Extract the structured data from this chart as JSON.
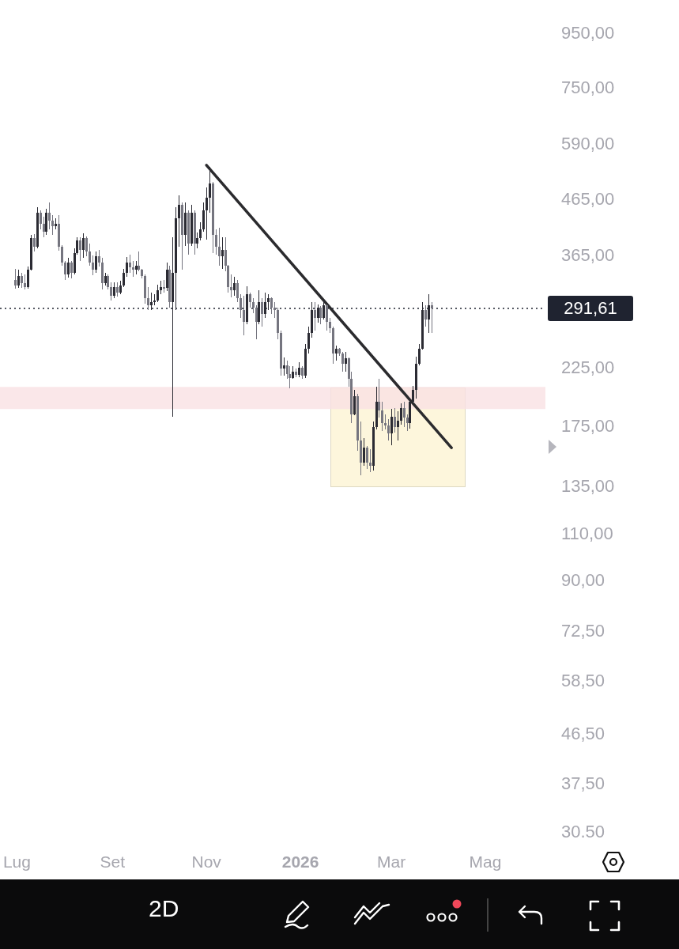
{
  "chart_data": {
    "type": "candlestick",
    "log": "y",
    "colors": [
      "#75757f",
      "#2b2b33",
      "#75757f",
      "#75757f",
      "#2b2b33",
      "#2b2b33",
      "#75757f",
      "#2b2b33",
      "#75757f",
      "#75757f",
      "#2b2b33",
      "#75757f",
      "#75757f",
      "#2b2b33",
      "#75757f",
      "#75757f",
      "#75757f",
      "#2b2b33",
      "#75757f",
      "#2b2b33",
      "#2b2b33",
      "#75757f",
      "#2b2b33",
      "#75757f",
      "#75757f",
      "#75757f",
      "#2b2b33",
      "#75757f",
      "#75757f",
      "#2b2b33",
      "#75757f",
      "#75757f",
      "#2b2b33",
      "#75757f",
      "#2b2b33",
      "#2b2b33",
      "#2b2b33",
      "#75757f",
      "#75757f",
      "#2b2b33",
      "#75757f",
      "#75757f",
      "#75757f",
      "#75757f",
      "#2b2b33",
      "#2b2b33",
      "#2b2b33",
      "#2b2b33",
      "#75757f",
      "#2b2b33",
      "#75757f",
      "#2b2b33",
      "#2b2b33",
      "#2b2b33",
      "#75757f",
      "#2b2b33",
      "#75757f",
      "#2b2b33",
      "#75757f",
      "#2b2b33",
      "#2b2b33",
      "#2b2b33",
      "#2b2b33",
      "#2b2b33",
      "#75757f",
      "#75757f",
      "#75757f",
      "#2b2b33",
      "#75757f",
      "#75757f",
      "#75757f",
      "#2b2b33",
      "#75757f",
      "#75757f",
      "#75757f",
      "#2b2b33",
      "#75757f",
      "#75757f",
      "#75757f",
      "#2b2b33",
      "#75757f",
      "#2b2b33",
      "#2b2b33",
      "#75757f",
      "#75757f",
      "#75757f",
      "#75757f",
      "#2b2b33",
      "#75757f",
      "#75757f",
      "#2b2b33",
      "#75757f",
      "#2b2b33",
      "#75757f",
      "#2b2b33",
      "#2b2b33",
      "#2b2b33",
      "#75757f",
      "#2b2b33",
      "#75757f",
      "#2b2b33",
      "#75757f",
      "#75757f",
      "#75757f",
      "#2b2b33",
      "#75757f",
      "#75757f",
      "#2b2b33",
      "#75757f",
      "#75757f",
      "#2b2b33",
      "#75757f",
      "#75757f",
      "#2b2b33",
      "#75757f",
      "#75757f",
      "#2b2b33",
      "#2b2b33",
      "#75757f",
      "#75757f",
      "#75757f",
      "#75757f",
      "#2b2b33",
      "#75757f",
      "#2b2b33",
      "#2b2b33",
      "#75757f",
      "#75757f",
      "#2b2b33",
      "#2b2b33",
      "#2b2b33",
      "#2b2b33",
      "#2b2b33",
      "#75757f",
      "#2b2b33",
      "#75757f"
    ],
    "grid": false,
    "legend": false,
    "xlim": [
      "2025-06-20",
      "2026-06-09"
    ],
    "ylim": [
      30.5,
      950
    ],
    "xticks": [
      {
        "value": "2025-07-01",
        "label": "Lug"
      },
      {
        "value": "2025-09-01",
        "label": "Set"
      },
      {
        "value": "2025-11-01",
        "label": "Nov"
      },
      {
        "value": "2026-01-01",
        "label": "2026"
      },
      {
        "value": "2026-03-01",
        "label": "Mar"
      },
      {
        "value": "2026-05-01",
        "label": "Mag"
      }
    ],
    "yticks": [
      {
        "value": 950,
        "label": "950,00"
      },
      {
        "value": 750,
        "label": "750,00"
      },
      {
        "value": 590,
        "label": "590,00"
      },
      {
        "value": 465,
        "label": "465,00"
      },
      {
        "value": 365,
        "label": "365,00"
      },
      {
        "value": 225,
        "label": "225,00"
      },
      {
        "value": 175,
        "label": "175,00"
      },
      {
        "value": 135,
        "label": "135,00"
      },
      {
        "value": 110,
        "label": "110,00"
      },
      {
        "value": 90,
        "label": "90,00"
      },
      {
        "value": 72.5,
        "label": "72,50"
      },
      {
        "value": 58.5,
        "label": "58,50"
      },
      {
        "value": 46.5,
        "label": "46,50"
      },
      {
        "value": 37.5,
        "label": "37,50"
      },
      {
        "value": 30.5,
        "label": "30.50"
      }
    ],
    "x": [
      "2025-06-30",
      "2025-07-02",
      "2025-07-04",
      "2025-07-06",
      "2025-07-08",
      "2025-07-10",
      "2025-07-12",
      "2025-07-14",
      "2025-07-16",
      "2025-07-18",
      "2025-07-20",
      "2025-07-22",
      "2025-07-24",
      "2025-07-26",
      "2025-07-28",
      "2025-07-30",
      "2025-08-01",
      "2025-08-03",
      "2025-08-05",
      "2025-08-07",
      "2025-08-09",
      "2025-08-11",
      "2025-08-13",
      "2025-08-15",
      "2025-08-17",
      "2025-08-19",
      "2025-08-21",
      "2025-08-23",
      "2025-08-25",
      "2025-08-27",
      "2025-08-29",
      "2025-08-31",
      "2025-09-02",
      "2025-09-04",
      "2025-09-06",
      "2025-09-08",
      "2025-09-10",
      "2025-09-12",
      "2025-09-14",
      "2025-09-16",
      "2025-09-18",
      "2025-09-20",
      "2025-09-22",
      "2025-09-24",
      "2025-09-26",
      "2025-09-28",
      "2025-09-30",
      "2025-10-02",
      "2025-10-04",
      "2025-10-06",
      "2025-10-08",
      "2025-10-10",
      "2025-10-12",
      "2025-10-14",
      "2025-10-16",
      "2025-10-18",
      "2025-10-20",
      "2025-10-22",
      "2025-10-24",
      "2025-10-26",
      "2025-10-28",
      "2025-10-30",
      "2025-11-01",
      "2025-11-03",
      "2025-11-05",
      "2025-11-07",
      "2025-11-09",
      "2025-11-11",
      "2025-11-13",
      "2025-11-15",
      "2025-11-17",
      "2025-11-19",
      "2025-11-21",
      "2025-11-23",
      "2025-11-25",
      "2025-11-27",
      "2025-11-29",
      "2025-12-01",
      "2025-12-03",
      "2025-12-05",
      "2025-12-07",
      "2025-12-09",
      "2025-12-11",
      "2025-12-13",
      "2025-12-15",
      "2025-12-17",
      "2025-12-19",
      "2025-12-21",
      "2025-12-23",
      "2025-12-25",
      "2025-12-27",
      "2025-12-29",
      "2025-12-31",
      "2026-01-02",
      "2026-01-04",
      "2026-01-06",
      "2026-01-08",
      "2026-01-10",
      "2026-01-12",
      "2026-01-14",
      "2026-01-16",
      "2026-01-18",
      "2026-01-20",
      "2026-01-22",
      "2026-01-24",
      "2026-01-26",
      "2026-01-28",
      "2026-01-30",
      "2026-02-01",
      "2026-02-03",
      "2026-02-05",
      "2026-02-07",
      "2026-02-09",
      "2026-02-11",
      "2026-02-13",
      "2026-02-15",
      "2026-02-17",
      "2026-02-19",
      "2026-02-21",
      "2026-02-23",
      "2026-02-25",
      "2026-02-27",
      "2026-03-01",
      "2026-03-03",
      "2026-03-05",
      "2026-03-07",
      "2026-03-09",
      "2026-03-11",
      "2026-03-13",
      "2026-03-15",
      "2026-03-17",
      "2026-03-19",
      "2026-03-21",
      "2026-03-23",
      "2026-03-25",
      "2026-03-27"
    ],
    "ohlc": [
      [
        330,
        346,
        317,
        322
      ],
      [
        322,
        344,
        318,
        335
      ],
      [
        335,
        340,
        318,
        325
      ],
      [
        325,
        337,
        316,
        320
      ],
      [
        320,
        349,
        317,
        345
      ],
      [
        345,
        400,
        343,
        395
      ],
      [
        395,
        402,
        372,
        380
      ],
      [
        380,
        450,
        378,
        440
      ],
      [
        440,
        445,
        410,
        420
      ],
      [
        420,
        432,
        396,
        405
      ],
      [
        405,
        448,
        400,
        440
      ],
      [
        440,
        460,
        410,
        425
      ],
      [
        425,
        435,
        400,
        415
      ],
      [
        415,
        430,
        410,
        420
      ],
      [
        420,
        436,
        374,
        380
      ],
      [
        380,
        383,
        350,
        355
      ],
      [
        355,
        358,
        330,
        338
      ],
      [
        338,
        362,
        333,
        355
      ],
      [
        355,
        358,
        332,
        340
      ],
      [
        340,
        378,
        338,
        370
      ],
      [
        370,
        396,
        368,
        390
      ],
      [
        390,
        396,
        358,
        375
      ],
      [
        375,
        403,
        362,
        395
      ],
      [
        395,
        398,
        365,
        372
      ],
      [
        372,
        386,
        350,
        355
      ],
      [
        355,
        366,
        336,
        345
      ],
      [
        345,
        373,
        340,
        365
      ],
      [
        365,
        375,
        349,
        355
      ],
      [
        355,
        362,
        316,
        325
      ],
      [
        325,
        340,
        322,
        335
      ],
      [
        335,
        337,
        316,
        320
      ],
      [
        320,
        326,
        302,
        308
      ],
      [
        308,
        326,
        305,
        320
      ],
      [
        320,
        326,
        307,
        312
      ],
      [
        312,
        328,
        310,
        322
      ],
      [
        322,
        346,
        320,
        340
      ],
      [
        340,
        364,
        334,
        355
      ],
      [
        355,
        368,
        340,
        348
      ],
      [
        348,
        358,
        334,
        345
      ],
      [
        345,
        358,
        338,
        350
      ],
      [
        350,
        372,
        342,
        345
      ],
      [
        345,
        346,
        332,
        335
      ],
      [
        335,
        338,
        298,
        305
      ],
      [
        305,
        320,
        290,
        295
      ],
      [
        295,
        312,
        290,
        300
      ],
      [
        300,
        310,
        295,
        302
      ],
      [
        302,
        323,
        300,
        315
      ],
      [
        315,
        328,
        310,
        320
      ],
      [
        320,
        330,
        312,
        318
      ],
      [
        318,
        355,
        314,
        345
      ],
      [
        345,
        350,
        292,
        300
      ],
      [
        300,
        396,
        183,
        340
      ],
      [
        340,
        450,
        290,
        430
      ],
      [
        430,
        475,
        380,
        455
      ],
      [
        455,
        460,
        345,
        400
      ],
      [
        400,
        460,
        382,
        440
      ],
      [
        440,
        445,
        368,
        385
      ],
      [
        385,
        455,
        382,
        440
      ],
      [
        440,
        445,
        368,
        385
      ],
      [
        385,
        404,
        377,
        395
      ],
      [
        395,
        422,
        390,
        410
      ],
      [
        410,
        460,
        405,
        445
      ],
      [
        445,
        490,
        392,
        470
      ],
      [
        470,
        537,
        440,
        500
      ],
      [
        500,
        503,
        370,
        400
      ],
      [
        400,
        410,
        368,
        380
      ],
      [
        380,
        412,
        350,
        365
      ],
      [
        365,
        396,
        346,
        375
      ],
      [
        375,
        396,
        342,
        350
      ],
      [
        350,
        352,
        312,
        320
      ],
      [
        320,
        338,
        306,
        315
      ],
      [
        315,
        334,
        308,
        325
      ],
      [
        325,
        330,
        300,
        305
      ],
      [
        305,
        310,
        280,
        290
      ],
      [
        290,
        308,
        260,
        275
      ],
      [
        275,
        321,
        272,
        310
      ],
      [
        310,
        312,
        292,
        300
      ],
      [
        300,
        305,
        286,
        292
      ],
      [
        292,
        295,
        255,
        275
      ],
      [
        275,
        315,
        272,
        300
      ],
      [
        300,
        305,
        270,
        285
      ],
      [
        285,
        312,
        280,
        300
      ],
      [
        300,
        310,
        290,
        305
      ],
      [
        305,
        306,
        285,
        292
      ],
      [
        292,
        300,
        280,
        290
      ],
      [
        290,
        292,
        255,
        262
      ],
      [
        262,
        265,
        218,
        225
      ],
      [
        225,
        236,
        218,
        228
      ],
      [
        228,
        233,
        215,
        220
      ],
      [
        220,
        227,
        207,
        216
      ],
      [
        216,
        227,
        215,
        222
      ],
      [
        222,
        225,
        217,
        219
      ],
      [
        219,
        231,
        217,
        226
      ],
      [
        226,
        227,
        215,
        218
      ],
      [
        218,
        250,
        216,
        245
      ],
      [
        245,
        270,
        240,
        262
      ],
      [
        262,
        300,
        257,
        290
      ],
      [
        290,
        300,
        265,
        280
      ],
      [
        280,
        296,
        274,
        292
      ],
      [
        292,
        294,
        272,
        280
      ],
      [
        280,
        303,
        278,
        295
      ],
      [
        295,
        297,
        265,
        275
      ],
      [
        275,
        280,
        262,
        268
      ],
      [
        268,
        270,
        230,
        240
      ],
      [
        240,
        248,
        233,
        245
      ],
      [
        245,
        246,
        238,
        240
      ],
      [
        240,
        242,
        222,
        230
      ],
      [
        230,
        242,
        222,
        235
      ],
      [
        235,
        236,
        208,
        215
      ],
      [
        215,
        222,
        178,
        185
      ],
      [
        185,
        205,
        184,
        200
      ],
      [
        200,
        202,
        158,
        165
      ],
      [
        165,
        179,
        142,
        150
      ],
      [
        150,
        167,
        148,
        160
      ],
      [
        160,
        161,
        146,
        150
      ],
      [
        150,
        159,
        144,
        148
      ],
      [
        148,
        179,
        145,
        175
      ],
      [
        175,
        208,
        173,
        195
      ],
      [
        195,
        215,
        182,
        188
      ],
      [
        188,
        195,
        172,
        178
      ],
      [
        178,
        185,
        173,
        176
      ],
      [
        176,
        181,
        165,
        170
      ],
      [
        170,
        189,
        162,
        183
      ],
      [
        183,
        190,
        171,
        175
      ],
      [
        175,
        187,
        165,
        180
      ],
      [
        180,
        194,
        177,
        190
      ],
      [
        190,
        195,
        175,
        182
      ],
      [
        182,
        185,
        172,
        178
      ],
      [
        178,
        198,
        174,
        195
      ],
      [
        195,
        209,
        193,
        205
      ],
      [
        205,
        237,
        198,
        230
      ],
      [
        230,
        250,
        228,
        245
      ],
      [
        245,
        300,
        244,
        290
      ],
      [
        290,
        295,
        270,
        278
      ],
      [
        278,
        310,
        262,
        295
      ],
      [
        295,
        300,
        262,
        291.61
      ]
    ],
    "series": [
      {
        "type": "line",
        "x": [
          "2025-11-01",
          "2026-04-09"
        ],
        "values": [
          540,
          160
        ],
        "color": "#2b2b2e"
      }
    ],
    "ref_lines": [
      {
        "axis": "y",
        "value": 291.61,
        "label": "291,61",
        "color": "#1f2330",
        "line_style": "dotted"
      }
    ],
    "bands": [
      {
        "axis": "y",
        "from": 189,
        "to": 208,
        "color": "#f9e1e3"
      }
    ],
    "annotations": [
      "2D"
    ]
  }
}
